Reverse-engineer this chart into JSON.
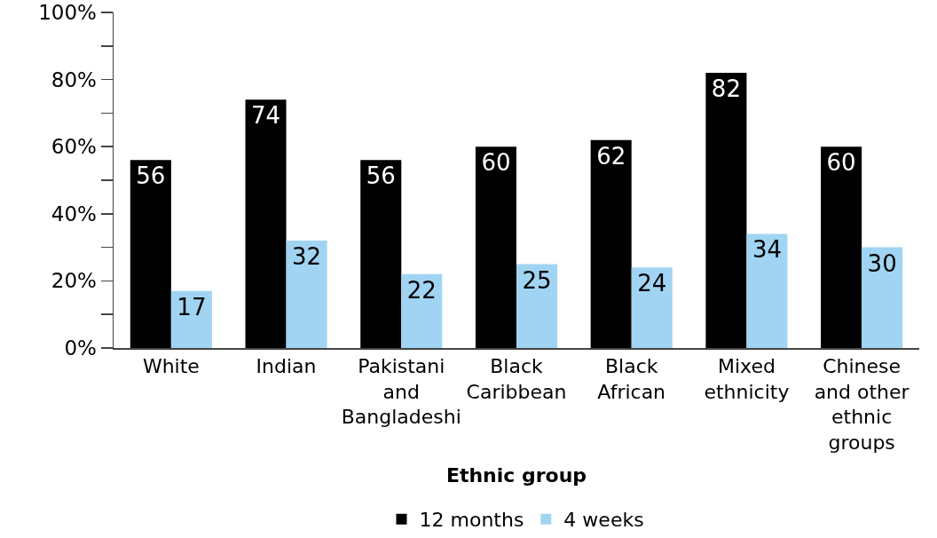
{
  "chart_data": {
    "type": "bar",
    "xlabel": "Ethnic group",
    "categories": [
      "White",
      "Indian",
      "Pakistani and Bangladeshi",
      "Black Caribbean",
      "Black African",
      "Mixed ethnicity",
      "Chinese and other ethnic groups"
    ],
    "series": [
      {
        "name": "12 months",
        "color": "#000000",
        "values": [
          56,
          74,
          56,
          60,
          62,
          82,
          60
        ]
      },
      {
        "name": "4 weeks",
        "color": "#a0d4f2",
        "values": [
          17,
          32,
          22,
          25,
          24,
          34,
          30
        ]
      }
    ],
    "ylim": [
      0,
      100
    ],
    "yticks": [
      {
        "value": 0,
        "label": "0%"
      },
      {
        "value": 10,
        "label": null
      },
      {
        "value": 20,
        "label": "20%"
      },
      {
        "value": 30,
        "label": null
      },
      {
        "value": 40,
        "label": "40%"
      },
      {
        "value": 50,
        "label": null
      },
      {
        "value": 60,
        "label": "60%"
      },
      {
        "value": 70,
        "label": null
      },
      {
        "value": 80,
        "label": "80%"
      },
      {
        "value": 90,
        "label": null
      },
      {
        "value": 100,
        "label": "100%"
      }
    ],
    "data_labels": true,
    "grid": false,
    "legend": "bottom"
  }
}
